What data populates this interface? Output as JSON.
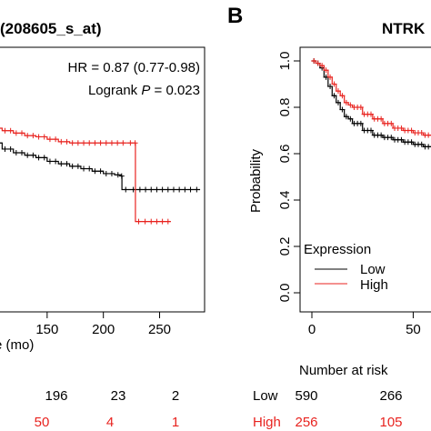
{
  "left_panel": {
    "title": "(208605_s_at)",
    "hr_text": "HR = 0.87 (0.77-0.98)",
    "logrank_label": "Logrank ",
    "logrank_p": "P",
    "logrank_value": " = 0.023",
    "xlabel_fragment": "e (mo)",
    "xtick_labels": [
      "150",
      "200",
      "250"
    ],
    "risk_low": [
      "196",
      "23",
      "2"
    ],
    "risk_high": [
      "50",
      "4",
      "1"
    ]
  },
  "right_panel": {
    "panel_letter": "B",
    "title": "NTRK",
    "ylabel": "Probability",
    "ytick_labels": [
      "0.0",
      "0.2",
      "0.4",
      "0.6",
      "0.8",
      "1.0"
    ],
    "xtick_labels": [
      "0",
      "50"
    ],
    "legend_title": "Expression",
    "legend_low": "Low",
    "legend_high": "High",
    "number_at_risk": "Number at risk",
    "risk_rows": [
      {
        "label": "Low",
        "values": [
          "590",
          "266"
        ]
      },
      {
        "label": "High",
        "values": [
          "256",
          "105"
        ]
      }
    ]
  },
  "colors": {
    "low": "#000000",
    "high": "#e8231f"
  },
  "chart_data": [
    {
      "type": "line",
      "title": "(208605_s_at)",
      "xlabel": "e (mo)",
      "xlim": [
        100,
        290
      ],
      "series": [
        {
          "name": "Low",
          "color": "#000000",
          "x": [
            100,
            110,
            120,
            130,
            140,
            150,
            160,
            170,
            180,
            190,
            200,
            210,
            216,
            216.5,
            230,
            240,
            250,
            260,
            270,
            280,
            286
          ],
          "y": [
            0.64,
            0.615,
            0.6,
            0.59,
            0.58,
            0.565,
            0.555,
            0.545,
            0.535,
            0.525,
            0.515,
            0.51,
            0.505,
            0.45,
            0.45,
            0.45,
            0.45,
            0.45,
            0.45,
            0.45,
            0.45
          ]
        },
        {
          "name": "High",
          "color": "#e8231f",
          "x": [
            100,
            110,
            120,
            130,
            140,
            150,
            160,
            170,
            180,
            190,
            200,
            210,
            220,
            228,
            228.5,
            240,
            250,
            260
          ],
          "y": [
            0.7,
            0.69,
            0.68,
            0.67,
            0.665,
            0.655,
            0.645,
            0.64,
            0.64,
            0.64,
            0.64,
            0.64,
            0.64,
            0.64,
            0.32,
            0.32,
            0.32,
            0.32
          ]
        }
      ]
    },
    {
      "type": "line",
      "title": "NTRK",
      "ylabel": "Probability",
      "ylim": [
        0,
        1
      ],
      "xlim": [
        0,
        70
      ],
      "legend": "bottom-left",
      "series": [
        {
          "name": "Low",
          "color": "#000000",
          "x": [
            0,
            2,
            4,
            6,
            8,
            10,
            12,
            14,
            16,
            18,
            20,
            25,
            30,
            35,
            40,
            45,
            50,
            55,
            60,
            65,
            70
          ],
          "y": [
            1.0,
            0.99,
            0.97,
            0.93,
            0.89,
            0.85,
            0.82,
            0.79,
            0.76,
            0.75,
            0.73,
            0.7,
            0.68,
            0.67,
            0.66,
            0.65,
            0.64,
            0.63,
            0.61,
            0.6,
            0.6
          ]
        },
        {
          "name": "High",
          "color": "#e8231f",
          "x": [
            0,
            2,
            4,
            6,
            8,
            10,
            12,
            14,
            16,
            18,
            20,
            25,
            30,
            35,
            40,
            45,
            50,
            55,
            60,
            65,
            70
          ],
          "y": [
            1.0,
            0.99,
            0.98,
            0.96,
            0.93,
            0.9,
            0.87,
            0.85,
            0.82,
            0.81,
            0.8,
            0.77,
            0.75,
            0.73,
            0.71,
            0.7,
            0.69,
            0.68,
            0.67,
            0.66,
            0.65
          ]
        }
      ]
    }
  ]
}
